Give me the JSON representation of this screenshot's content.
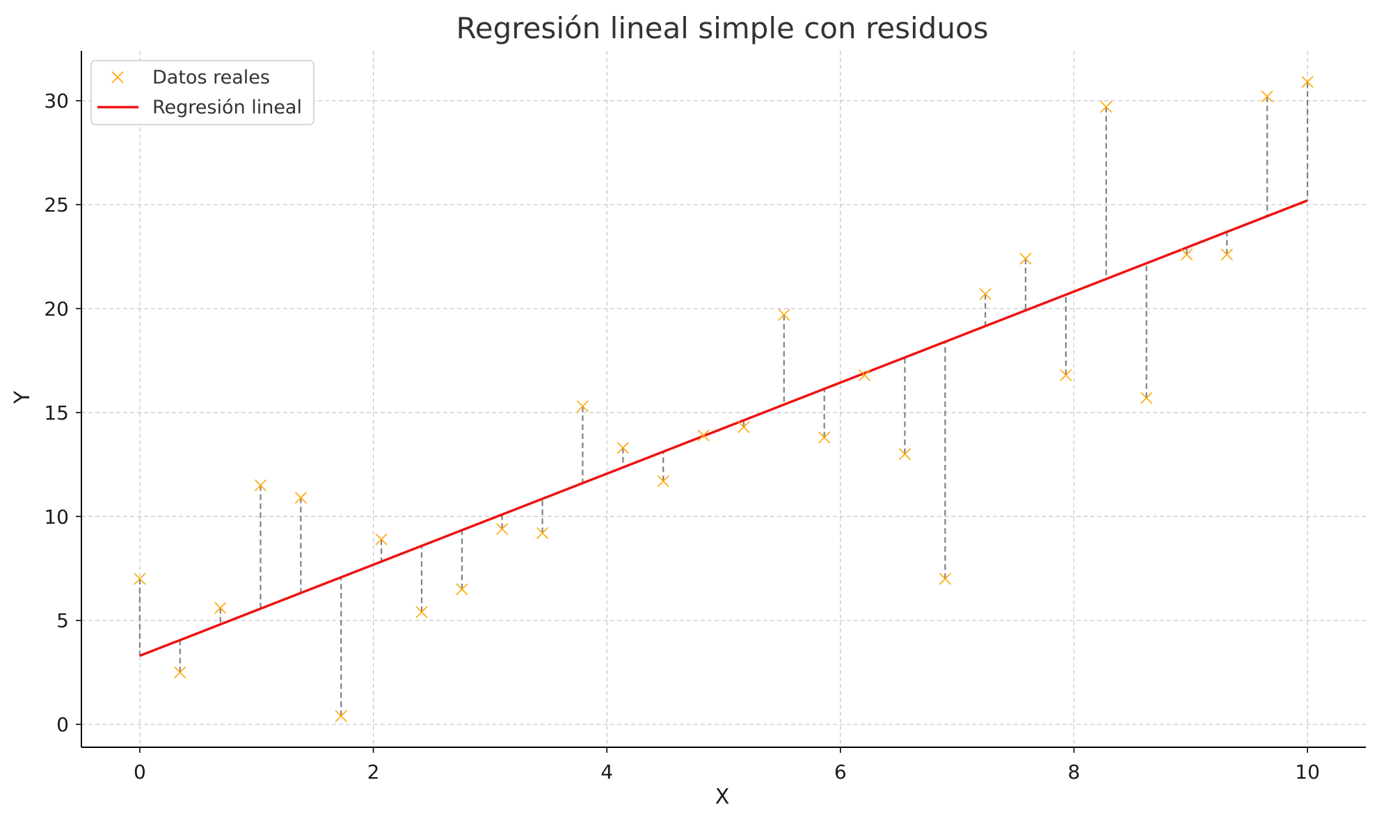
{
  "chart_data": {
    "type": "scatter",
    "title": "Regresión lineal simple con residuos",
    "xlabel": "X",
    "ylabel": "Y",
    "xlim": [
      -0.5,
      10.5
    ],
    "ylim": [
      -1.1,
      32.4
    ],
    "xticks": [
      0,
      2,
      4,
      6,
      8,
      10
    ],
    "yticks": [
      0,
      5,
      10,
      15,
      20,
      25,
      30
    ],
    "grid": true,
    "legend_position": "top-left",
    "series": [
      {
        "name": "Datos reales",
        "kind": "scatter",
        "marker": "x",
        "color": "#FFA500",
        "x": [
          0.0,
          0.345,
          0.69,
          1.034,
          1.379,
          1.724,
          2.069,
          2.414,
          2.759,
          3.103,
          3.448,
          3.793,
          4.138,
          4.483,
          4.828,
          5.172,
          5.517,
          5.862,
          6.207,
          6.552,
          6.897,
          7.241,
          7.586,
          7.931,
          8.276,
          8.621,
          8.966,
          9.31,
          9.655,
          10.0
        ],
        "y": [
          7.0,
          2.5,
          5.6,
          11.5,
          10.9,
          0.4,
          8.9,
          5.4,
          6.5,
          9.4,
          9.2,
          15.3,
          13.3,
          11.7,
          13.9,
          14.3,
          19.7,
          13.8,
          16.8,
          13.0,
          7.0,
          20.7,
          22.4,
          16.8,
          29.7,
          15.7,
          22.6,
          22.6,
          30.2,
          30.9
        ]
      },
      {
        "name": "Regresión lineal",
        "kind": "line",
        "color": "#EE1111",
        "x": [
          0,
          10
        ],
        "y": [
          3.3,
          25.2
        ]
      }
    ],
    "residuals": {
      "color": "#808080",
      "style": "dashed"
    }
  }
}
